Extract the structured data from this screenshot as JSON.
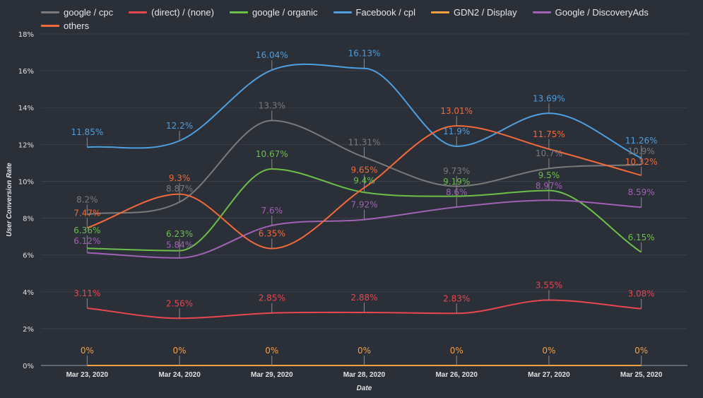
{
  "chart_data": {
    "type": "line",
    "title": "",
    "xlabel": "Date",
    "ylabel": "User Conversion Rate",
    "ylim": [
      0,
      18
    ],
    "yticks": [
      "0%",
      "2%",
      "4%",
      "6%",
      "8%",
      "10%",
      "12%",
      "14%",
      "16%",
      "18%"
    ],
    "grid": true,
    "legend_position": "top",
    "categories": [
      "Mar 23, 2020",
      "Mar 24, 2020",
      "Mar 29, 2020",
      "Mar 28, 2020",
      "Mar 26, 2020",
      "Mar 27, 2020",
      "Mar 25, 2020"
    ],
    "series": [
      {
        "name": "google / cpc",
        "color": "#7a7a7a",
        "values": [
          8.2,
          8.87,
          13.3,
          11.31,
          9.73,
          10.7,
          10.9
        ]
      },
      {
        "name": "(direct) / (none)",
        "color": "#e8474f",
        "values": [
          3.11,
          2.56,
          2.85,
          2.88,
          2.83,
          3.55,
          3.08
        ]
      },
      {
        "name": "google / organic",
        "color": "#6cc04a",
        "values": [
          6.36,
          6.23,
          10.67,
          9.4,
          9.19,
          9.5,
          6.15
        ]
      },
      {
        "name": "Facebook / cpl",
        "color": "#4d9fe0",
        "values": [
          11.85,
          12.2,
          16.04,
          16.13,
          11.9,
          13.69,
          11.26
        ]
      },
      {
        "name": "GDN2 / Display",
        "color": "#f5a043",
        "values": [
          0,
          0,
          0,
          0,
          0,
          0,
          0
        ]
      },
      {
        "name": "Google / DiscoveryAds",
        "color": "#a062b5",
        "values": [
          6.12,
          5.84,
          7.6,
          7.92,
          8.6,
          8.97,
          8.59
        ]
      },
      {
        "name": "others",
        "color": "#f26a3a",
        "values": [
          7.47,
          9.3,
          6.35,
          9.65,
          13.01,
          11.75,
          10.32
        ]
      }
    ]
  }
}
